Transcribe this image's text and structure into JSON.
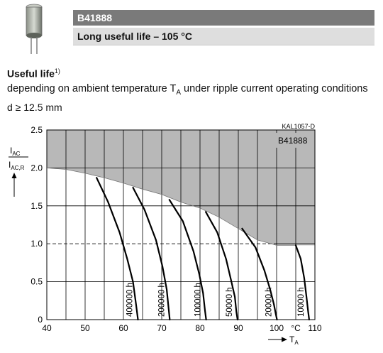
{
  "header": {
    "part_number": "B41888",
    "subtitle": "Long useful life – 105 °C"
  },
  "section": {
    "title": "Useful life",
    "footnote_marker": "1)",
    "description_prefix": "depending on ambient temperature T",
    "description_sub": "A",
    "description_suffix": " under ripple current operating conditions",
    "condition": "d ≥ 12.5 mm"
  },
  "chart_data": {
    "type": "line",
    "chart_code": "KAL1057-D",
    "inset_label": "B41888",
    "ylabel_num_main": "I",
    "ylabel_num_sub": "AC",
    "ylabel_den_main": "I",
    "ylabel_den_sub": "AC,R",
    "xlabel_main": "T",
    "xlabel_sub": "A",
    "x_unit": "°C",
    "xlim": [
      40,
      110
    ],
    "ylim": [
      0,
      2.5
    ],
    "x_ticks": [
      40,
      50,
      60,
      70,
      80,
      90,
      100,
      110
    ],
    "y_ticks": [
      0,
      0.5,
      1.0,
      1.5,
      2.0,
      2.5
    ],
    "x_tick_labels": [
      "40",
      "50",
      "60",
      "70",
      "80",
      "90",
      "100",
      "110"
    ],
    "y_tick_labels": [
      "0",
      "0.5",
      "1.0",
      "1.5",
      "2.0",
      "2.5"
    ],
    "grid": true,
    "shaded_region": "above boundary (not permitted)",
    "boundary": {
      "x": [
        40,
        45,
        50,
        55,
        60,
        65,
        70,
        75,
        80,
        85,
        90,
        95,
        100,
        105
      ],
      "y": [
        2.0,
        1.98,
        1.93,
        1.87,
        1.8,
        1.72,
        1.65,
        1.55,
        1.47,
        1.35,
        1.2,
        1.05,
        0.98,
        0.98
      ]
    },
    "reference_line_y": 1.0,
    "series": [
      {
        "name": "400000 h",
        "x": [
          53,
          56,
          59,
          61,
          62.5,
          63.3,
          63.8
        ],
        "y": [
          1.87,
          1.55,
          1.15,
          0.8,
          0.5,
          0.2,
          0
        ]
      },
      {
        "name": "200000 h",
        "x": [
          62.5,
          65.5,
          68.5,
          70.2,
          71.3,
          71.8,
          72.1
        ],
        "y": [
          1.74,
          1.45,
          1.05,
          0.7,
          0.4,
          0.15,
          0
        ]
      },
      {
        "name": "100000 h",
        "x": [
          72,
          75.5,
          78.3,
          79.8,
          80.8,
          81.3,
          81.6
        ],
        "y": [
          1.58,
          1.3,
          0.9,
          0.6,
          0.35,
          0.12,
          0
        ]
      },
      {
        "name": "50000 h",
        "x": [
          81.5,
          84.5,
          86.8,
          88.2,
          89.1,
          89.5,
          89.8
        ],
        "y": [
          1.42,
          1.15,
          0.8,
          0.5,
          0.3,
          0.1,
          0
        ]
      },
      {
        "name": "20000 h",
        "x": [
          91,
          94.5,
          96.8,
          98.3,
          99.3,
          99.8,
          100.1
        ],
        "y": [
          1.2,
          0.95,
          0.65,
          0.4,
          0.2,
          0.07,
          0
        ]
      },
      {
        "name": "10000 h",
        "x": [
          105,
          106.3,
          107.2,
          107.8,
          108.2,
          108.5
        ],
        "y": [
          0.98,
          0.8,
          0.55,
          0.3,
          0.12,
          0
        ]
      }
    ],
    "colors": {
      "shade": "#b8b8b8",
      "grid": "#000000",
      "curve": "#000000"
    }
  }
}
